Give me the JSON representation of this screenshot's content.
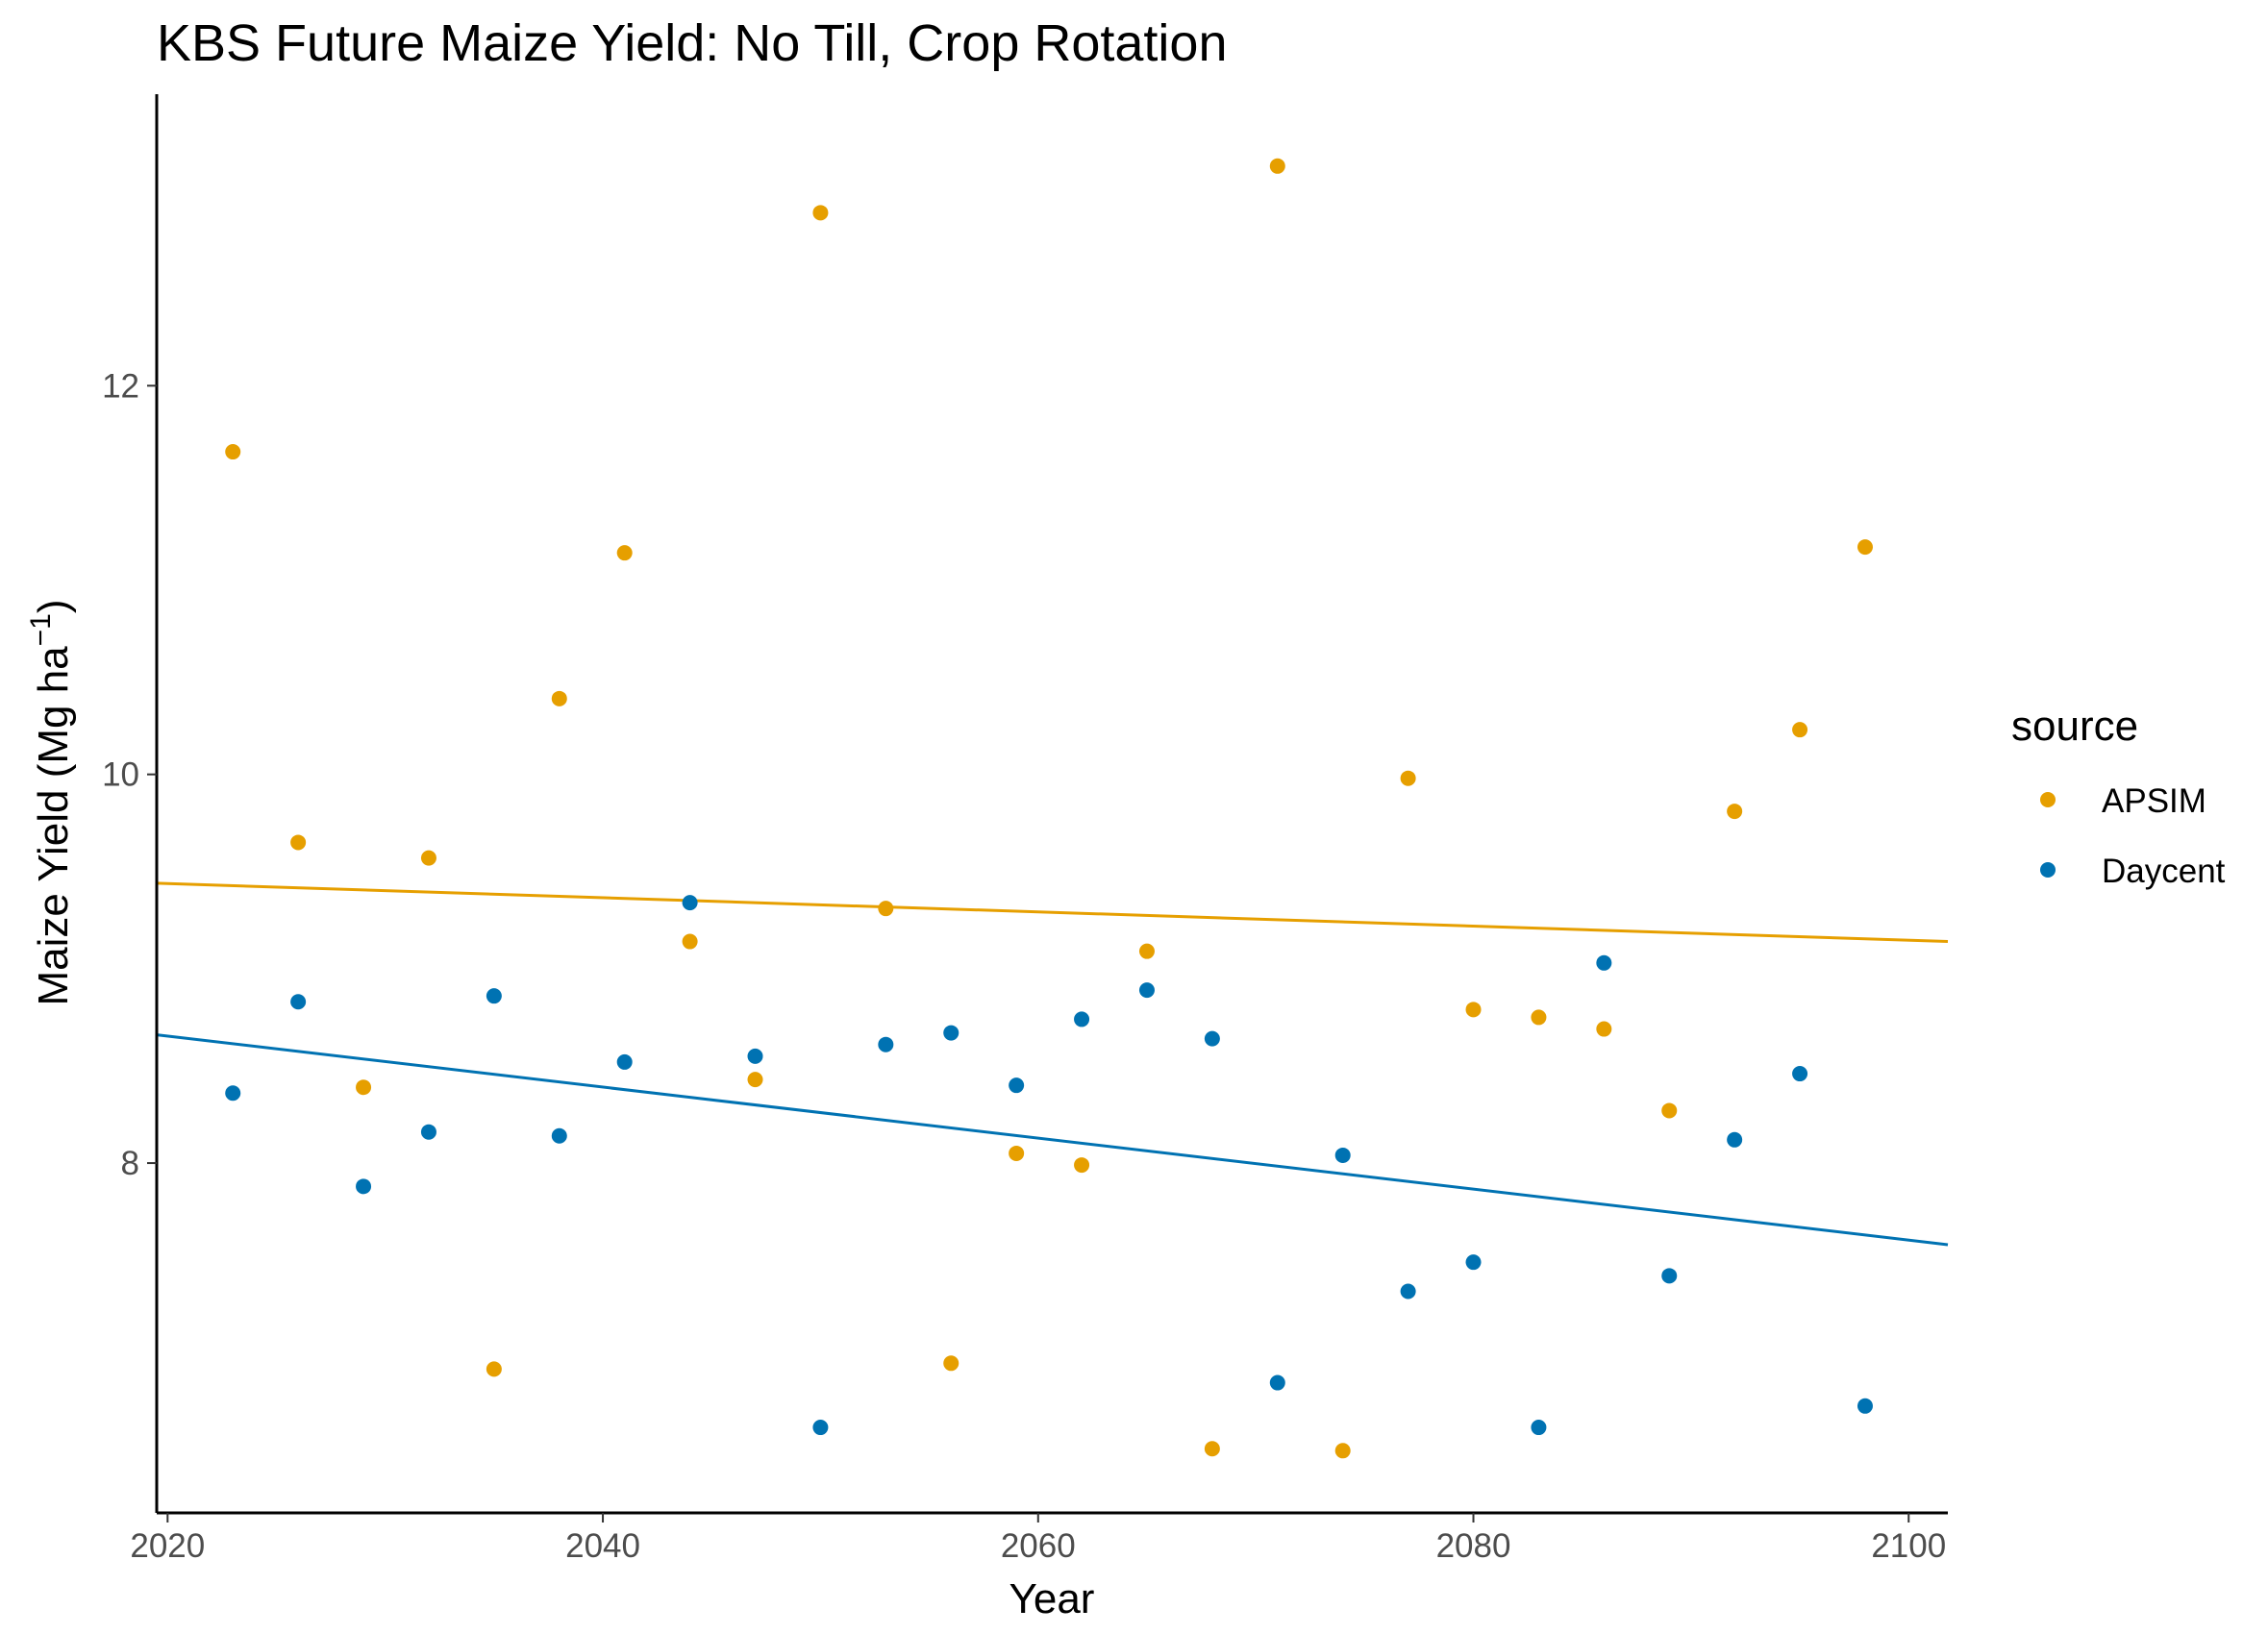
{
  "chart_data": {
    "type": "scatter",
    "title": "KBS Future Maize Yield:  No Till, Crop Rotation",
    "xlabel": "Year",
    "ylabel_main": "Maize Yield (Mg ha",
    "ylabel_sup": "−1",
    "ylabel_end": ")",
    "xlim": [
      2019.5,
      2101.8
    ],
    "ylim": [
      6.2,
      13.5
    ],
    "xticks": [
      2020,
      2040,
      2060,
      2080,
      2100
    ],
    "yticks": [
      8,
      10,
      12
    ],
    "grid": false,
    "legend": {
      "title": "source",
      "position": "right"
    },
    "series": [
      {
        "name": "APSIM",
        "color": "#E69F00",
        "points": [
          [
            2023,
            11.66
          ],
          [
            2026,
            9.65
          ],
          [
            2029,
            8.39
          ],
          [
            2032,
            9.57
          ],
          [
            2035,
            6.94
          ],
          [
            2038,
            10.39
          ],
          [
            2041,
            11.14
          ],
          [
            2044,
            9.14
          ],
          [
            2047,
            8.43
          ],
          [
            2050,
            12.89
          ],
          [
            2053,
            9.31
          ],
          [
            2056,
            6.97
          ],
          [
            2059,
            8.05
          ],
          [
            2062,
            7.99
          ],
          [
            2065,
            9.09
          ],
          [
            2068,
            6.53
          ],
          [
            2071,
            13.13
          ],
          [
            2074,
            6.52
          ],
          [
            2077,
            9.98
          ],
          [
            2080,
            8.79
          ],
          [
            2083,
            8.75
          ],
          [
            2086,
            8.69
          ],
          [
            2089,
            8.27
          ],
          [
            2092,
            9.81
          ],
          [
            2095,
            10.23
          ],
          [
            2098,
            11.17
          ]
        ],
        "trend": [
          [
            2019.5,
            9.44
          ],
          [
            2101.8,
            9.14
          ]
        ]
      },
      {
        "name": "Daycent",
        "color": "#0072B2",
        "points": [
          [
            2023,
            8.36
          ],
          [
            2026,
            8.83
          ],
          [
            2029,
            7.88
          ],
          [
            2032,
            8.16
          ],
          [
            2035,
            8.86
          ],
          [
            2038,
            8.14
          ],
          [
            2041,
            8.52
          ],
          [
            2044,
            9.34
          ],
          [
            2047,
            8.55
          ],
          [
            2050,
            6.64
          ],
          [
            2053,
            8.61
          ],
          [
            2056,
            8.67
          ],
          [
            2059,
            8.4
          ],
          [
            2062,
            8.74
          ],
          [
            2065,
            8.89
          ],
          [
            2068,
            8.64
          ],
          [
            2071,
            6.87
          ],
          [
            2074,
            8.04
          ],
          [
            2077,
            7.34
          ],
          [
            2080,
            7.49
          ],
          [
            2083,
            6.64
          ],
          [
            2086,
            9.03
          ],
          [
            2089,
            7.42
          ],
          [
            2092,
            8.12
          ],
          [
            2095,
            8.46
          ],
          [
            2098,
            6.75
          ]
        ],
        "trend": [
          [
            2019.5,
            8.66
          ],
          [
            2101.8,
            7.58
          ]
        ]
      }
    ]
  }
}
